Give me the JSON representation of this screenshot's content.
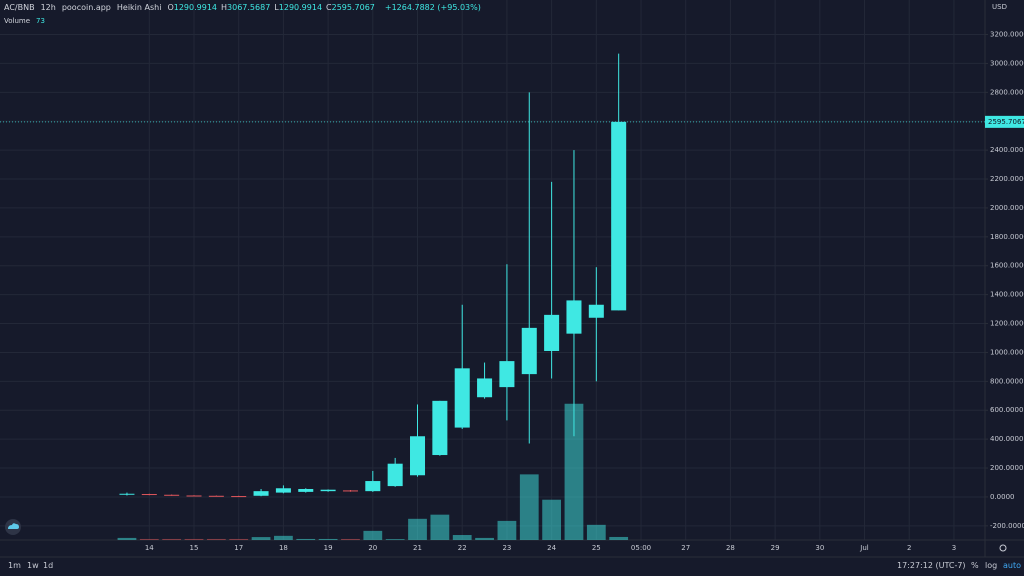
{
  "header": {
    "symbol": "AC/BNB",
    "interval": "12h",
    "source": "poocoin.app",
    "style": "Heikin Ashi",
    "ohlc": [
      {
        "label": "O",
        "value": "1290.9914"
      },
      {
        "label": "H",
        "value": "3067.5687"
      },
      {
        "label": "L",
        "value": "1290.9914"
      },
      {
        "label": "C",
        "value": "2595.7067"
      }
    ],
    "change": "+1264.7882 (+95.03%)",
    "currency": "USD"
  },
  "toolbar": {
    "ranges": [
      "1m",
      "1w",
      "1d"
    ],
    "time": "17:27:12 (UTC-7)",
    "options": [
      "%",
      "log",
      "auto"
    ]
  },
  "chart_data": {
    "type": "candlestick",
    "x": [
      0,
      1,
      2,
      3,
      4,
      5,
      6,
      7,
      8,
      9,
      10,
      11,
      12,
      13,
      14,
      15,
      16,
      17,
      18,
      19,
      20,
      21,
      22
    ],
    "open": [
      18,
      20,
      15,
      10,
      8,
      6,
      8,
      30,
      35,
      40,
      45,
      40,
      75,
      150,
      290,
      480,
      690,
      760,
      850,
      1010,
      1130,
      1240,
      1290.9914
    ],
    "high": [
      30,
      22,
      17,
      12,
      10,
      8,
      55,
      80,
      60,
      52,
      48,
      180,
      270,
      640,
      665,
      1330,
      930,
      1610,
      2800,
      2180,
      2400,
      1590,
      3067.5687
    ],
    "low": [
      10,
      12,
      8,
      6,
      4,
      3,
      5,
      25,
      30,
      36,
      36,
      35,
      70,
      140,
      285,
      470,
      680,
      530,
      370,
      820,
      420,
      800,
      1290.9914
    ],
    "close": [
      22,
      15,
      10,
      8,
      6,
      5,
      40,
      60,
      55,
      50,
      40,
      110,
      230,
      420,
      665,
      890,
      820,
      940,
      1170,
      1260,
      1360,
      1330,
      2595.7067
    ],
    "up_color": "#3fe8e3",
    "down_color": "#e3575c",
    "ylim": [
      -298,
      3439
    ],
    "yticks": [
      {
        "value": -200,
        "label": "-200.0000"
      },
      {
        "value": 0,
        "label": "0.0000"
      },
      {
        "value": 200,
        "label": "200.0000"
      },
      {
        "value": 400,
        "label": "400.0000"
      },
      {
        "value": 600,
        "label": "600.0000"
      },
      {
        "value": 800,
        "label": "800.0000"
      },
      {
        "value": 1000,
        "label": "1000.0000"
      },
      {
        "value": 1200,
        "label": "1200.0000"
      },
      {
        "value": 1400,
        "label": "1400.0000"
      },
      {
        "value": 1600,
        "label": "1600.0000"
      },
      {
        "value": 1800,
        "label": "1800.0000"
      },
      {
        "value": 2000,
        "label": "2000.0000"
      },
      {
        "value": 2200,
        "label": "2200.0000"
      },
      {
        "value": 2400,
        "label": "2400.0000"
      },
      {
        "value": 2600,
        "label": "2600.0000"
      },
      {
        "value": 2800,
        "label": "2800.0000"
      },
      {
        "value": 3000,
        "label": "3000.0000"
      },
      {
        "value": 3200,
        "label": "3200.0000"
      }
    ],
    "xlim": [
      -5.68,
      38.39
    ],
    "xticks": [
      {
        "value": 1,
        "label": "14"
      },
      {
        "value": 3,
        "label": "15"
      },
      {
        "value": 5,
        "label": "17"
      },
      {
        "value": 7,
        "label": "18"
      },
      {
        "value": 9,
        "label": "19"
      },
      {
        "value": 11,
        "label": "20"
      },
      {
        "value": 13,
        "label": "21"
      },
      {
        "value": 15,
        "label": "22"
      },
      {
        "value": 17,
        "label": "23"
      },
      {
        "value": 19,
        "label": "24"
      },
      {
        "value": 21,
        "label": "25"
      },
      {
        "value": 23,
        "label": "05:00"
      },
      {
        "value": 25,
        "label": "27"
      },
      {
        "value": 27,
        "label": "28"
      },
      {
        "value": 29,
        "label": "29"
      },
      {
        "value": 31,
        "label": "30"
      },
      {
        "value": 33,
        "label": "Jul"
      },
      {
        "value": 35,
        "label": "2"
      },
      {
        "value": 37,
        "label": "3"
      }
    ],
    "grid": true,
    "last_price": {
      "value": 2595.7067,
      "label": "2595.7067"
    },
    "volume": {
      "name": "Volume",
      "ylim": [
        0,
        13000
      ],
      "values": [
        50,
        25,
        25,
        25,
        25,
        25,
        70,
        100,
        25,
        25,
        25,
        220,
        20,
        510,
        610,
        120,
        50,
        460,
        1580,
        970,
        3280,
        365,
        73
      ]
    }
  }
}
